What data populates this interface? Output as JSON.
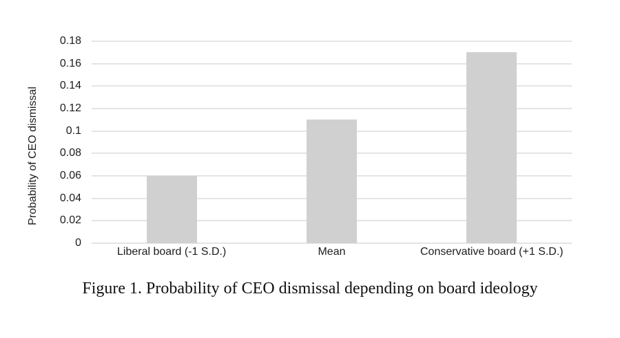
{
  "chart_data": {
    "type": "bar",
    "title": "",
    "categories": [
      "Liberal board (-1 S.D.)",
      "Mean",
      "Conservative board (+1 S.D.)"
    ],
    "values": [
      0.06,
      0.11,
      0.17
    ],
    "ylabel": "Probability of CEO dismissal",
    "xlabel": "",
    "ylim": [
      0,
      0.18
    ],
    "ytick_values": [
      0,
      0.02,
      0.04,
      0.06,
      0.08,
      0.1,
      0.12,
      0.14,
      0.16,
      0.18
    ],
    "ytick_labels": [
      "0",
      "0.02",
      "0.04",
      "0.06",
      "0.08",
      "0.1",
      "0.12",
      "0.14",
      "0.16",
      "0.18"
    ],
    "grid": true,
    "legend_position": "none",
    "bar_color": "#d0d0d0",
    "gridline_color": "#e4e4e4",
    "text_color": "#1c1c1c"
  },
  "caption": "Figure 1. Probability of CEO dismissal depending on board ideology"
}
